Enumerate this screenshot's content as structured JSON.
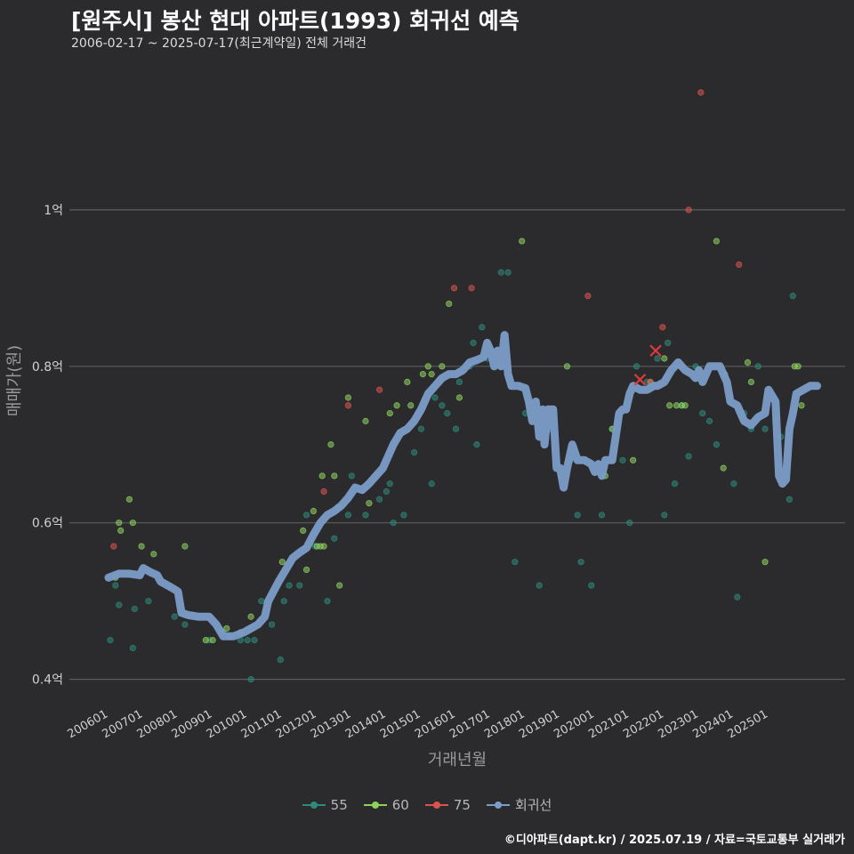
{
  "header": {
    "title": "[원주시] 봉산 현대 아파트(1993) 회귀선 예측",
    "subtitle": "2006-02-17 ~ 2025-07-17(최근계약일) 전체 거래건"
  },
  "footer": {
    "credit": "©디아파트(dapt.kr) / 2025.07.19 / 자료=국토교통부 실거래가"
  },
  "colors": {
    "background": "#2b2b2d",
    "grid": "#5c5c5c",
    "series_55": "#2e8b7a",
    "series_60": "#8ed25e",
    "series_75": "#d9534f",
    "regression": "#7b9cc8"
  },
  "chart_data": {
    "type": "scatter",
    "title": "[원주시] 봉산 현대 아파트(1993) 회귀선 예측",
    "xlabel": "거래년월",
    "ylabel": "매매가(원)",
    "ylim": [
      0.37,
      1.2
    ],
    "xlim": [
      2005.5,
      2026.4
    ],
    "y_ticks": [
      {
        "value": 0.4,
        "label": "0.4억"
      },
      {
        "value": 0.6,
        "label": "0.6억"
      },
      {
        "value": 0.8,
        "label": "0.8억"
      },
      {
        "value": 1.0,
        "label": "1억"
      }
    ],
    "x_ticks": [
      "200601",
      "200701",
      "200801",
      "200901",
      "201001",
      "201101",
      "201201",
      "201301",
      "201401",
      "201501",
      "201601",
      "201701",
      "201801",
      "201901",
      "202001",
      "202101",
      "202201",
      "202301",
      "202401",
      "202501"
    ],
    "legend": [
      {
        "name": "55",
        "color": "#2e8b7a"
      },
      {
        "name": "60",
        "color": "#8ed25e"
      },
      {
        "name": "75",
        "color": "#d9534f"
      },
      {
        "name": "회귀선",
        "color": "#7b9cc8"
      }
    ],
    "series": [
      {
        "name": "55",
        "points": [
          [
            2006.05,
            0.45
          ],
          [
            2006.2,
            0.52
          ],
          [
            2006.3,
            0.495
          ],
          [
            2006.7,
            0.44
          ],
          [
            2006.75,
            0.49
          ],
          [
            2007.15,
            0.5
          ],
          [
            2007.9,
            0.48
          ],
          [
            2008.2,
            0.47
          ],
          [
            2008.9,
            0.45
          ],
          [
            2009.3,
            0.46
          ],
          [
            2009.5,
            0.455
          ],
          [
            2009.8,
            0.45
          ],
          [
            2010.0,
            0.45
          ],
          [
            2010.1,
            0.4
          ],
          [
            2010.2,
            0.45
          ],
          [
            2010.4,
            0.5
          ],
          [
            2010.7,
            0.47
          ],
          [
            2010.95,
            0.425
          ],
          [
            2011.05,
            0.5
          ],
          [
            2011.2,
            0.52
          ],
          [
            2011.5,
            0.52
          ],
          [
            2011.7,
            0.61
          ],
          [
            2011.95,
            0.57
          ],
          [
            2012.3,
            0.5
          ],
          [
            2012.5,
            0.58
          ],
          [
            2012.6,
            0.62
          ],
          [
            2012.9,
            0.61
          ],
          [
            2013.0,
            0.66
          ],
          [
            2013.4,
            0.61
          ],
          [
            2013.8,
            0.63
          ],
          [
            2014.0,
            0.64
          ],
          [
            2014.1,
            0.65
          ],
          [
            2014.2,
            0.6
          ],
          [
            2014.5,
            0.61
          ],
          [
            2014.8,
            0.69
          ],
          [
            2015.0,
            0.72
          ],
          [
            2015.3,
            0.65
          ],
          [
            2015.4,
            0.76
          ],
          [
            2015.6,
            0.75
          ],
          [
            2015.75,
            0.74
          ],
          [
            2016.0,
            0.72
          ],
          [
            2016.1,
            0.78
          ],
          [
            2016.4,
            0.8
          ],
          [
            2016.5,
            0.83
          ],
          [
            2016.6,
            0.7
          ],
          [
            2016.75,
            0.85
          ],
          [
            2016.9,
            0.81
          ],
          [
            2017.3,
            0.92
          ],
          [
            2017.5,
            0.92
          ],
          [
            2017.7,
            0.55
          ],
          [
            2018.0,
            0.74
          ],
          [
            2018.4,
            0.52
          ],
          [
            2018.7,
            0.72
          ],
          [
            2019.3,
            0.68
          ],
          [
            2019.5,
            0.61
          ],
          [
            2019.6,
            0.55
          ],
          [
            2019.9,
            0.52
          ],
          [
            2020.2,
            0.61
          ],
          [
            2020.5,
            0.72
          ],
          [
            2020.8,
            0.68
          ],
          [
            2021.0,
            0.6
          ],
          [
            2021.2,
            0.8
          ],
          [
            2021.5,
            0.78
          ],
          [
            2021.8,
            0.81
          ],
          [
            2022.0,
            0.61
          ],
          [
            2022.1,
            0.83
          ],
          [
            2022.3,
            0.65
          ],
          [
            2022.5,
            0.75
          ],
          [
            2022.7,
            0.685
          ],
          [
            2022.9,
            0.8
          ],
          [
            2023.1,
            0.74
          ],
          [
            2023.3,
            0.73
          ],
          [
            2023.5,
            0.7
          ],
          [
            2023.75,
            0.79
          ],
          [
            2024.0,
            0.65
          ],
          [
            2024.1,
            0.505
          ],
          [
            2024.3,
            0.74
          ],
          [
            2024.5,
            0.72
          ],
          [
            2024.7,
            0.8
          ],
          [
            2024.9,
            0.72
          ],
          [
            2025.2,
            0.73
          ],
          [
            2025.35,
            0.71
          ],
          [
            2025.6,
            0.63
          ],
          [
            2025.7,
            0.89
          ]
        ]
      },
      {
        "name": "60",
        "points": [
          [
            2006.2,
            0.53
          ],
          [
            2006.3,
            0.6
          ],
          [
            2006.35,
            0.59
          ],
          [
            2006.6,
            0.63
          ],
          [
            2006.7,
            0.6
          ],
          [
            2006.95,
            0.57
          ],
          [
            2007.3,
            0.56
          ],
          [
            2008.2,
            0.57
          ],
          [
            2008.8,
            0.45
          ],
          [
            2009.0,
            0.45
          ],
          [
            2009.4,
            0.465
          ],
          [
            2009.8,
            0.46
          ],
          [
            2010.1,
            0.48
          ],
          [
            2011.0,
            0.55
          ],
          [
            2011.6,
            0.59
          ],
          [
            2011.7,
            0.54
          ],
          [
            2011.9,
            0.615
          ],
          [
            2012.0,
            0.57
          ],
          [
            2012.1,
            0.57
          ],
          [
            2012.15,
            0.66
          ],
          [
            2012.2,
            0.57
          ],
          [
            2012.4,
            0.7
          ],
          [
            2012.5,
            0.66
          ],
          [
            2012.65,
            0.52
          ],
          [
            2012.9,
            0.76
          ],
          [
            2013.4,
            0.73
          ],
          [
            2013.5,
            0.625
          ],
          [
            2014.1,
            0.74
          ],
          [
            2014.3,
            0.75
          ],
          [
            2014.6,
            0.78
          ],
          [
            2014.7,
            0.75
          ],
          [
            2015.05,
            0.79
          ],
          [
            2015.2,
            0.8
          ],
          [
            2015.3,
            0.79
          ],
          [
            2015.6,
            0.8
          ],
          [
            2015.8,
            0.88
          ],
          [
            2016.1,
            0.76
          ],
          [
            2017.9,
            0.96
          ],
          [
            2019.2,
            0.8
          ],
          [
            2020.3,
            0.66
          ],
          [
            2020.5,
            0.72
          ],
          [
            2021.1,
            0.68
          ],
          [
            2021.6,
            0.78
          ],
          [
            2022.0,
            0.81
          ],
          [
            2022.15,
            0.75
          ],
          [
            2022.35,
            0.75
          ],
          [
            2022.5,
            0.75
          ],
          [
            2022.6,
            0.75
          ],
          [
            2023.5,
            0.96
          ],
          [
            2023.7,
            0.67
          ],
          [
            2024.4,
            0.805
          ],
          [
            2024.5,
            0.78
          ],
          [
            2024.9,
            0.55
          ],
          [
            2025.75,
            0.8
          ],
          [
            2025.85,
            0.8
          ],
          [
            2025.95,
            0.75
          ]
        ]
      },
      {
        "name": "75",
        "points": [
          [
            2006.15,
            0.57
          ],
          [
            2012.2,
            0.64
          ],
          [
            2012.9,
            0.75
          ],
          [
            2013.8,
            0.77
          ],
          [
            2015.95,
            0.9
          ],
          [
            2016.45,
            0.9
          ],
          [
            2019.8,
            0.89
          ],
          [
            2021.6,
            0.78
          ],
          [
            2021.95,
            0.85
          ],
          [
            2022.7,
            1.0
          ],
          [
            2023.05,
            1.15
          ],
          [
            2024.15,
            0.93
          ]
        ]
      },
      {
        "name": "회귀선",
        "points": [
          [
            2006.0,
            0.53
          ],
          [
            2006.3,
            0.535
          ],
          [
            2006.6,
            0.535
          ],
          [
            2006.9,
            0.533
          ],
          [
            2007.0,
            0.542
          ],
          [
            2007.2,
            0.537
          ],
          [
            2007.4,
            0.533
          ],
          [
            2007.5,
            0.525
          ],
          [
            2007.7,
            0.52
          ],
          [
            2007.9,
            0.515
          ],
          [
            2008.0,
            0.512
          ],
          [
            2008.1,
            0.485
          ],
          [
            2008.3,
            0.482
          ],
          [
            2008.6,
            0.48
          ],
          [
            2008.9,
            0.48
          ],
          [
            2009.1,
            0.47
          ],
          [
            2009.3,
            0.455
          ],
          [
            2009.6,
            0.455
          ],
          [
            2009.9,
            0.46
          ],
          [
            2010.1,
            0.465
          ],
          [
            2010.3,
            0.47
          ],
          [
            2010.5,
            0.48
          ],
          [
            2010.6,
            0.5
          ],
          [
            2010.9,
            0.525
          ],
          [
            2011.1,
            0.54
          ],
          [
            2011.3,
            0.555
          ],
          [
            2011.5,
            0.562
          ],
          [
            2011.7,
            0.568
          ],
          [
            2011.9,
            0.585
          ],
          [
            2012.1,
            0.6
          ],
          [
            2012.3,
            0.61
          ],
          [
            2012.5,
            0.615
          ],
          [
            2012.7,
            0.622
          ],
          [
            2012.9,
            0.632
          ],
          [
            2013.1,
            0.645
          ],
          [
            2013.3,
            0.642
          ],
          [
            2013.5,
            0.65
          ],
          [
            2013.7,
            0.66
          ],
          [
            2013.9,
            0.67
          ],
          [
            2014.0,
            0.68
          ],
          [
            2014.2,
            0.7
          ],
          [
            2014.4,
            0.715
          ],
          [
            2014.6,
            0.72
          ],
          [
            2014.8,
            0.73
          ],
          [
            2015.0,
            0.745
          ],
          [
            2015.2,
            0.765
          ],
          [
            2015.4,
            0.775
          ],
          [
            2015.6,
            0.785
          ],
          [
            2015.8,
            0.79
          ],
          [
            2016.0,
            0.79
          ],
          [
            2016.2,
            0.795
          ],
          [
            2016.4,
            0.805
          ],
          [
            2016.6,
            0.808
          ],
          [
            2016.8,
            0.812
          ],
          [
            2016.9,
            0.83
          ],
          [
            2017.0,
            0.82
          ],
          [
            2017.1,
            0.8
          ],
          [
            2017.2,
            0.82
          ],
          [
            2017.3,
            0.8
          ],
          [
            2017.4,
            0.84
          ],
          [
            2017.5,
            0.79
          ],
          [
            2017.6,
            0.775
          ],
          [
            2017.8,
            0.775
          ],
          [
            2018.0,
            0.772
          ],
          [
            2018.1,
            0.755
          ],
          [
            2018.2,
            0.73
          ],
          [
            2018.3,
            0.755
          ],
          [
            2018.4,
            0.71
          ],
          [
            2018.5,
            0.745
          ],
          [
            2018.55,
            0.7
          ],
          [
            2018.65,
            0.745
          ],
          [
            2018.8,
            0.745
          ],
          [
            2018.9,
            0.67
          ],
          [
            2019.0,
            0.67
          ],
          [
            2019.1,
            0.645
          ],
          [
            2019.2,
            0.67
          ],
          [
            2019.35,
            0.7
          ],
          [
            2019.5,
            0.68
          ],
          [
            2019.7,
            0.68
          ],
          [
            2019.9,
            0.675
          ],
          [
            2020.0,
            0.665
          ],
          [
            2020.1,
            0.675
          ],
          [
            2020.2,
            0.66
          ],
          [
            2020.3,
            0.68
          ],
          [
            2020.5,
            0.68
          ],
          [
            2020.6,
            0.71
          ],
          [
            2020.7,
            0.74
          ],
          [
            2020.8,
            0.745
          ],
          [
            2020.9,
            0.745
          ],
          [
            2021.0,
            0.765
          ],
          [
            2021.1,
            0.775
          ],
          [
            2021.3,
            0.77
          ],
          [
            2021.5,
            0.77
          ],
          [
            2021.7,
            0.775
          ],
          [
            2021.8,
            0.775
          ],
          [
            2022.0,
            0.78
          ],
          [
            2022.2,
            0.795
          ],
          [
            2022.4,
            0.805
          ],
          [
            2022.6,
            0.795
          ],
          [
            2022.8,
            0.79
          ],
          [
            2022.9,
            0.785
          ],
          [
            2023.0,
            0.795
          ],
          [
            2023.1,
            0.78
          ],
          [
            2023.3,
            0.8
          ],
          [
            2023.6,
            0.8
          ],
          [
            2023.8,
            0.78
          ],
          [
            2023.9,
            0.755
          ],
          [
            2024.1,
            0.75
          ],
          [
            2024.3,
            0.73
          ],
          [
            2024.5,
            0.725
          ],
          [
            2024.7,
            0.735
          ],
          [
            2024.9,
            0.74
          ],
          [
            2025.0,
            0.77
          ],
          [
            2025.2,
            0.755
          ],
          [
            2025.3,
            0.66
          ],
          [
            2025.4,
            0.65
          ],
          [
            2025.5,
            0.655
          ],
          [
            2025.6,
            0.72
          ],
          [
            2025.7,
            0.74
          ],
          [
            2025.8,
            0.765
          ],
          [
            2026.0,
            0.77
          ],
          [
            2026.2,
            0.775
          ],
          [
            2026.4,
            0.775
          ]
        ]
      }
    ],
    "predictions": [
      [
        2021.3,
        0.783
      ],
      [
        2021.75,
        0.82
      ]
    ]
  }
}
